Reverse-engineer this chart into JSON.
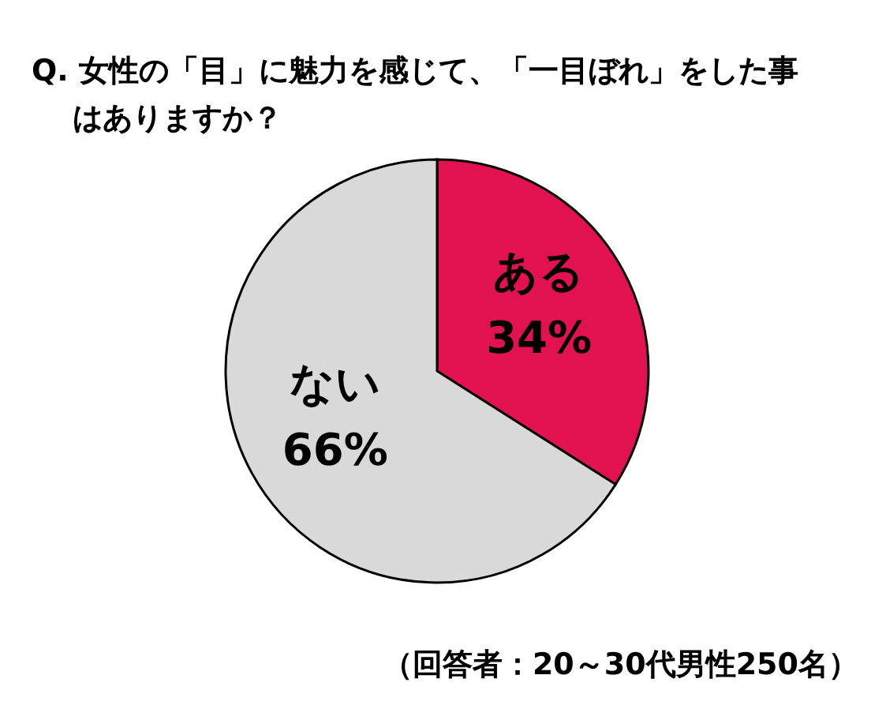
{
  "chart_data": {
    "type": "pie",
    "title": "Q. 女性の「目」に魅力を感じて、「一目ぼれ」をした事はありますか？",
    "categories": [
      "ある",
      "ない"
    ],
    "values": [
      34,
      66
    ],
    "value_labels": [
      "34%",
      "66%"
    ],
    "colors": [
      "#e2114f",
      "#d9d9d9"
    ],
    "annotations": [
      "（回答者：20～30代男性250名）"
    ]
  }
}
